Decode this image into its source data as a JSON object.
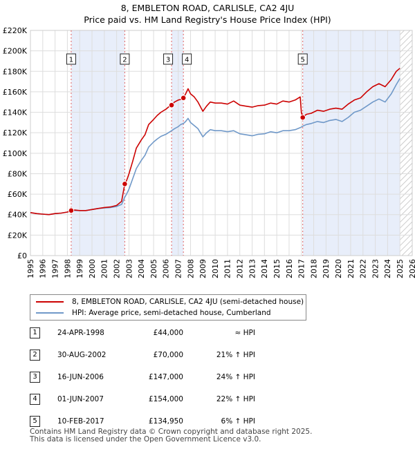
{
  "title_line1": "8, EMBLETON ROAD, CARLISLE, CA2 4JU",
  "title_line2": "Price paid vs. HM Land Registry's House Price Index (HPI)",
  "colors": {
    "property": "#cc0000",
    "hpi": "#6f98c8",
    "shade": "#e8eefa",
    "grid": "#dddddd",
    "vline": "#e06060"
  },
  "chart_data": {
    "type": "line",
    "title": "8, EMBLETON ROAD, CARLISLE, CA2 4JU",
    "subtitle": "Price paid vs. HM Land Registry's House Price Index (HPI)",
    "xlim": [
      1995,
      2026
    ],
    "ylim": [
      0,
      220000
    ],
    "x_ticks": [
      "1995",
      "1996",
      "1997",
      "1998",
      "1999",
      "2000",
      "2001",
      "2002",
      "2003",
      "2004",
      "2005",
      "2006",
      "2007",
      "2008",
      "2009",
      "2010",
      "2011",
      "2012",
      "2013",
      "2014",
      "2015",
      "2016",
      "2017",
      "2018",
      "2019",
      "2020",
      "2021",
      "2022",
      "2023",
      "2024",
      "2025",
      "2026"
    ],
    "y_ticks": [
      "£0",
      "£20K",
      "£40K",
      "£60K",
      "£80K",
      "£100K",
      "£120K",
      "£140K",
      "£160K",
      "£180K",
      "£200K",
      "£220K"
    ],
    "grid": true,
    "legend_placement": "below-chart",
    "series": [
      {
        "name": "8, EMBLETON ROAD, CARLISLE, CA2 4JU (semi-detached house)",
        "x": [
          1995.0,
          1995.5,
          1996.0,
          1996.5,
          1997.0,
          1997.5,
          1998.0,
          1998.31,
          1998.6,
          1999.0,
          1999.5,
          2000.0,
          2000.5,
          2001.0,
          2001.5,
          2002.0,
          2002.4,
          2002.66,
          2002.8,
          2003.0,
          2003.3,
          2003.6,
          2004.0,
          2004.3,
          2004.6,
          2005.0,
          2005.3,
          2005.6,
          2006.0,
          2006.2,
          2006.46,
          2006.7,
          2007.0,
          2007.2,
          2007.42,
          2007.6,
          2007.8,
          2008.0,
          2008.3,
          2008.6,
          2009.0,
          2009.3,
          2009.6,
          2010.0,
          2010.5,
          2011.0,
          2011.5,
          2012.0,
          2012.5,
          2013.0,
          2013.5,
          2014.0,
          2014.5,
          2015.0,
          2015.5,
          2016.0,
          2016.5,
          2016.9,
          2017.0,
          2017.11,
          2017.4,
          2017.8,
          2018.3,
          2018.8,
          2019.3,
          2019.8,
          2020.3,
          2020.8,
          2021.3,
          2021.8,
          2022.3,
          2022.8,
          2023.3,
          2023.8,
          2024.3,
          2024.7,
          2025.0
        ],
        "y": [
          42000,
          41000,
          40500,
          40000,
          41000,
          41500,
          42500,
          44000,
          44500,
          44000,
          44000,
          45000,
          46000,
          47000,
          47500,
          49000,
          53000,
          70000,
          73000,
          80000,
          92000,
          105000,
          113000,
          118000,
          128000,
          133000,
          137000,
          140000,
          143000,
          145000,
          147000,
          150000,
          152000,
          152500,
          154000,
          158000,
          163000,
          158000,
          155000,
          150000,
          141000,
          146000,
          150000,
          149000,
          149000,
          148000,
          151000,
          147000,
          146000,
          145000,
          146500,
          147000,
          149000,
          148000,
          151000,
          150000,
          152000,
          155000,
          140000,
          134950,
          138000,
          139000,
          142000,
          141000,
          143000,
          144000,
          143000,
          148000,
          152000,
          154000,
          160000,
          165000,
          168000,
          165000,
          172000,
          180000,
          183000
        ]
      },
      {
        "name": "HPI: Average price, semi-detached house, Cumberland",
        "x": [
          1995.0,
          1995.5,
          1996.0,
          1996.5,
          1997.0,
          1997.5,
          1998.0,
          1998.31,
          1998.6,
          1999.0,
          1999.5,
          2000.0,
          2000.5,
          2001.0,
          2001.5,
          2002.0,
          2002.4,
          2002.66,
          2002.8,
          2003.0,
          2003.3,
          2003.6,
          2004.0,
          2004.3,
          2004.6,
          2005.0,
          2005.3,
          2005.6,
          2006.0,
          2006.2,
          2006.46,
          2006.7,
          2007.0,
          2007.2,
          2007.42,
          2007.6,
          2007.8,
          2008.0,
          2008.3,
          2008.6,
          2009.0,
          2009.3,
          2009.6,
          2010.0,
          2010.5,
          2011.0,
          2011.5,
          2012.0,
          2012.5,
          2013.0,
          2013.5,
          2014.0,
          2014.5,
          2015.0,
          2015.5,
          2016.0,
          2016.5,
          2016.9,
          2017.0,
          2017.11,
          2017.4,
          2017.8,
          2018.3,
          2018.8,
          2019.3,
          2019.8,
          2020.3,
          2020.8,
          2021.3,
          2021.8,
          2022.3,
          2022.8,
          2023.3,
          2023.8,
          2024.3,
          2024.7,
          2025.0
        ],
        "y": [
          42000,
          41000,
          40500,
          40000,
          41000,
          41500,
          42500,
          43500,
          44000,
          44000,
          44000,
          45000,
          46000,
          46500,
          47000,
          48000,
          50000,
          57000,
          60000,
          65000,
          75000,
          85000,
          93000,
          98000,
          106000,
          111000,
          114000,
          116500,
          118500,
          120000,
          122000,
          124000,
          126000,
          128000,
          129000,
          131000,
          134000,
          130000,
          127000,
          124000,
          116000,
          120000,
          123000,
          122000,
          122000,
          121000,
          122000,
          119000,
          118000,
          117000,
          118500,
          119000,
          121000,
          120000,
          122000,
          122000,
          123000,
          125000,
          125500,
          126500,
          128000,
          129000,
          131000,
          130000,
          132000,
          133000,
          131000,
          135000,
          140000,
          142000,
          146000,
          150000,
          153000,
          150000,
          158000,
          167000,
          173000
        ]
      }
    ],
    "sales": [
      {
        "label": "1",
        "x": 1998.31,
        "y": 44000
      },
      {
        "label": "2",
        "x": 2002.66,
        "y": 70000
      },
      {
        "label": "3",
        "x": 2006.46,
        "y": 147000
      },
      {
        "label": "4",
        "x": 2007.42,
        "y": 154000
      },
      {
        "label": "5",
        "x": 2017.11,
        "y": 134950
      }
    ],
    "shaded_ranges": [
      [
        1998.31,
        2002.66
      ],
      [
        2006.46,
        2007.42
      ],
      [
        2017.11,
        2025.0
      ]
    ],
    "projection_start": 2025.0
  },
  "legend": {
    "property": "8, EMBLETON ROAD, CARLISLE, CA2 4JU (semi-detached house)",
    "hpi": "HPI: Average price, semi-detached house, Cumberland"
  },
  "table": [
    {
      "num": "1",
      "date": "24-APR-1998",
      "price": "£44,000",
      "hpi": "≈ HPI"
    },
    {
      "num": "2",
      "date": "30-AUG-2002",
      "price": "£70,000",
      "hpi": "21% ↑ HPI"
    },
    {
      "num": "3",
      "date": "16-JUN-2006",
      "price": "£147,000",
      "hpi": "24% ↑ HPI"
    },
    {
      "num": "4",
      "date": "01-JUN-2007",
      "price": "£154,000",
      "hpi": "22% ↑ HPI"
    },
    {
      "num": "5",
      "date": "10-FEB-2017",
      "price": "£134,950",
      "hpi": "6% ↑ HPI"
    }
  ],
  "footer": {
    "line1": "Contains HM Land Registry data © Crown copyright and database right 2025.",
    "line2": "This data is licensed under the Open Government Licence v3.0."
  }
}
